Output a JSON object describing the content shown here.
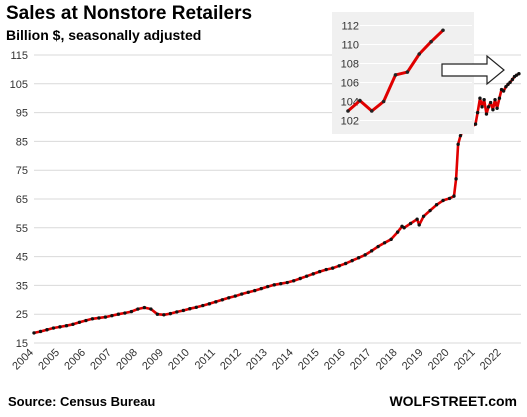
{
  "chart_data": [
    {
      "type": "line",
      "title": "Sales at Nonstore Retailers",
      "subtitle": "Billion $, seasonally adjusted",
      "source": "Source: Census Bureau",
      "brand": "WOLFSTREET.com",
      "ylim": [
        15,
        115
      ],
      "yticks": [
        15,
        25,
        35,
        45,
        55,
        65,
        75,
        85,
        95,
        105,
        115
      ],
      "xlim": [
        2004,
        2022.75
      ],
      "xticks": [
        2004,
        2005,
        2006,
        2007,
        2008,
        2009,
        2010,
        2011,
        2012,
        2013,
        2014,
        2015,
        2016,
        2017,
        2018,
        2019,
        2020,
        2021,
        2022
      ],
      "grid": "horizontal",
      "line_color": "#e00000",
      "marker_color": "#111111",
      "series": [
        {
          "x": [
            2004.0,
            2004.25,
            2004.5,
            2004.75,
            2005.0,
            2005.25,
            2005.5,
            2005.75,
            2006.0,
            2006.25,
            2006.5,
            2006.75,
            2007.0,
            2007.25,
            2007.5,
            2007.75,
            2008.0,
            2008.25,
            2008.5,
            2008.75,
            2009.0,
            2009.25,
            2009.5,
            2009.75,
            2010.0,
            2010.25,
            2010.5,
            2010.75,
            2011.0,
            2011.25,
            2011.5,
            2011.75,
            2012.0,
            2012.25,
            2012.5,
            2012.75,
            2013.0,
            2013.25,
            2013.5,
            2013.75,
            2014.0,
            2014.25,
            2014.5,
            2014.75,
            2015.0,
            2015.25,
            2015.5,
            2015.75,
            2016.0,
            2016.25,
            2016.5,
            2016.75,
            2017.0,
            2017.25,
            2017.5,
            2017.75,
            2018.0,
            2018.17,
            2018.25,
            2018.5,
            2018.75,
            2018.83,
            2019.0,
            2019.25,
            2019.5,
            2019.75,
            2020.0,
            2020.17,
            2020.25,
            2020.33,
            2020.42,
            2020.5,
            2020.75,
            2021.0,
            2021.08,
            2021.17,
            2021.25,
            2021.33,
            2021.42,
            2021.5,
            2021.58,
            2021.67,
            2021.75,
            2021.83,
            2021.92,
            2022.0,
            2022.08,
            2022.17,
            2022.25,
            2022.33,
            2022.42,
            2022.5,
            2022.58,
            2022.67
          ],
          "values": [
            18.5,
            19.0,
            19.6,
            20.2,
            20.6,
            21.0,
            21.5,
            22.2,
            22.8,
            23.4,
            23.7,
            24.0,
            24.5,
            25.0,
            25.4,
            25.9,
            26.8,
            27.3,
            26.8,
            25.0,
            24.8,
            25.2,
            25.8,
            26.3,
            26.9,
            27.4,
            28.0,
            28.6,
            29.3,
            30.0,
            30.7,
            31.3,
            32.0,
            32.6,
            33.2,
            33.9,
            34.6,
            35.2,
            35.6,
            36.0,
            36.6,
            37.4,
            38.2,
            39.0,
            39.8,
            40.5,
            41.0,
            41.8,
            42.6,
            43.6,
            44.6,
            45.6,
            47.0,
            48.5,
            49.8,
            51.0,
            53.5,
            55.5,
            55.0,
            56.5,
            58.0,
            56.0,
            59.0,
            61.0,
            63.0,
            64.5,
            65.2,
            66.0,
            72.0,
            84.0,
            87.0,
            88.5,
            89.5,
            91.0,
            95.0,
            100.0,
            97.0,
            99.5,
            94.5,
            97.0,
            98.5,
            96.0,
            99.5,
            96.5,
            100.0,
            103.0,
            102.5,
            104.0,
            104.8,
            105.5,
            106.5,
            107.5,
            108.0,
            108.5
          ]
        }
      ]
    },
    {
      "type": "line",
      "title": "",
      "ylim": [
        101,
        113
      ],
      "yticks": [
        102,
        104,
        106,
        108,
        110,
        112
      ],
      "grid": "horizontal",
      "background": "#f0f0f0",
      "line_color": "#e00000",
      "series": [
        {
          "x": [
            1,
            2,
            3,
            4,
            5,
            6,
            7,
            8,
            9
          ],
          "values": [
            103.0,
            104.1,
            103.0,
            104.0,
            106.8,
            107.1,
            109.0,
            110.3,
            111.5
          ]
        }
      ]
    }
  ]
}
